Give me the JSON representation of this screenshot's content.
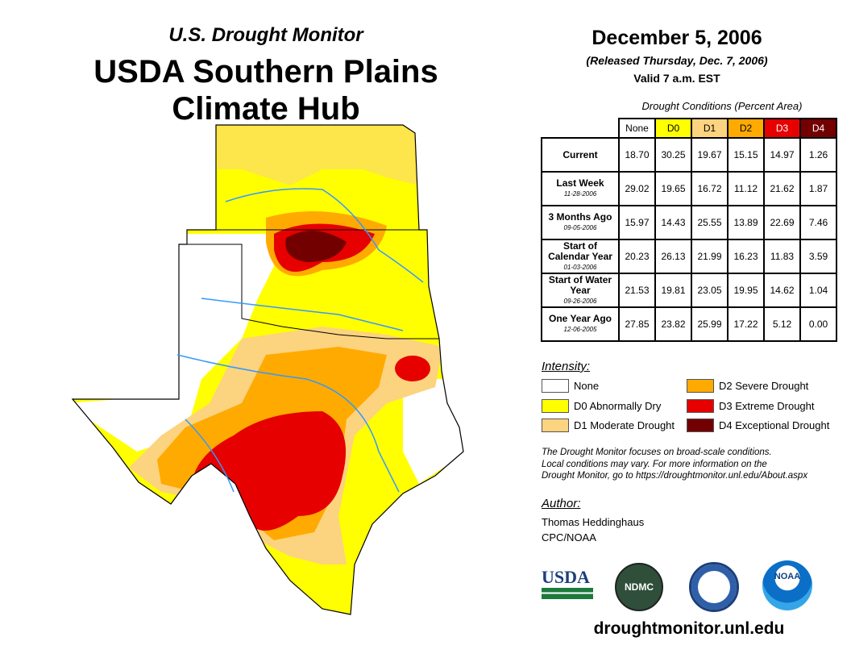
{
  "header": {
    "subtitle": "U.S. Drought Monitor",
    "title_line1": "USDA Southern Plains",
    "title_line2": "Climate Hub"
  },
  "info": {
    "date": "December 5, 2006",
    "released": "(Released Thursday, Dec. 7, 2006)",
    "valid": "Valid 7 a.m. EST"
  },
  "table": {
    "caption": "Drought Conditions (Percent Area)",
    "columns": [
      {
        "label": "None",
        "color": "#ffffff",
        "text": "#000"
      },
      {
        "label": "D0",
        "color": "#ffff00",
        "text": "#000"
      },
      {
        "label": "D1",
        "color": "#fcd37f",
        "text": "#000"
      },
      {
        "label": "D2",
        "color": "#ffaa00",
        "text": "#000"
      },
      {
        "label": "D3",
        "color": "#e60000",
        "text": "#fff"
      },
      {
        "label": "D4",
        "color": "#730000",
        "text": "#fff"
      }
    ],
    "rows": [
      {
        "label": "Current",
        "date": "",
        "values": [
          "18.70",
          "30.25",
          "19.67",
          "15.15",
          "14.97",
          "1.26"
        ]
      },
      {
        "label": "Last Week",
        "date": "11-28-2006",
        "values": [
          "29.02",
          "19.65",
          "16.72",
          "11.12",
          "21.62",
          "1.87"
        ]
      },
      {
        "label": "3 Months Ago",
        "date": "09-05-2006",
        "values": [
          "15.97",
          "14.43",
          "25.55",
          "13.89",
          "22.69",
          "7.46"
        ]
      },
      {
        "label": "Start of Calendar Year",
        "date": "01-03-2006",
        "values": [
          "20.23",
          "26.13",
          "21.99",
          "16.23",
          "11.83",
          "3.59"
        ]
      },
      {
        "label": "Start of Water Year",
        "date": "09-26-2006",
        "values": [
          "21.53",
          "19.81",
          "23.05",
          "19.95",
          "14.62",
          "1.04"
        ]
      },
      {
        "label": "One Year Ago",
        "date": "12-06-2005",
        "values": [
          "27.85",
          "23.82",
          "25.99",
          "17.22",
          "5.12",
          "0.00"
        ]
      }
    ]
  },
  "legend": {
    "title": "Intensity:",
    "items": [
      {
        "label": "None",
        "color": "#ffffff"
      },
      {
        "label": "D0 Abnormally Dry",
        "color": "#ffff00"
      },
      {
        "label": "D1 Moderate Drought",
        "color": "#fcd37f"
      },
      {
        "label": "D2 Severe Drought",
        "color": "#ffaa00"
      },
      {
        "label": "D3 Extreme Drought",
        "color": "#e60000"
      },
      {
        "label": "D4 Exceptional Drought",
        "color": "#730000"
      }
    ]
  },
  "note": [
    "The Drought Monitor focuses on broad-scale conditions.",
    "Local conditions may vary. For more information on the",
    "Drought Monitor, go to https://droughtmonitor.unl.edu/About.aspx"
  ],
  "author": {
    "heading": "Author:",
    "name": "Thomas Heddinghaus",
    "org": "CPC/NOAA"
  },
  "logos": {
    "usda": "USDA",
    "ndmc": "NDMC",
    "noaa": "NOAA"
  },
  "footer": {
    "url": "droughtmonitor.unl.edu"
  }
}
